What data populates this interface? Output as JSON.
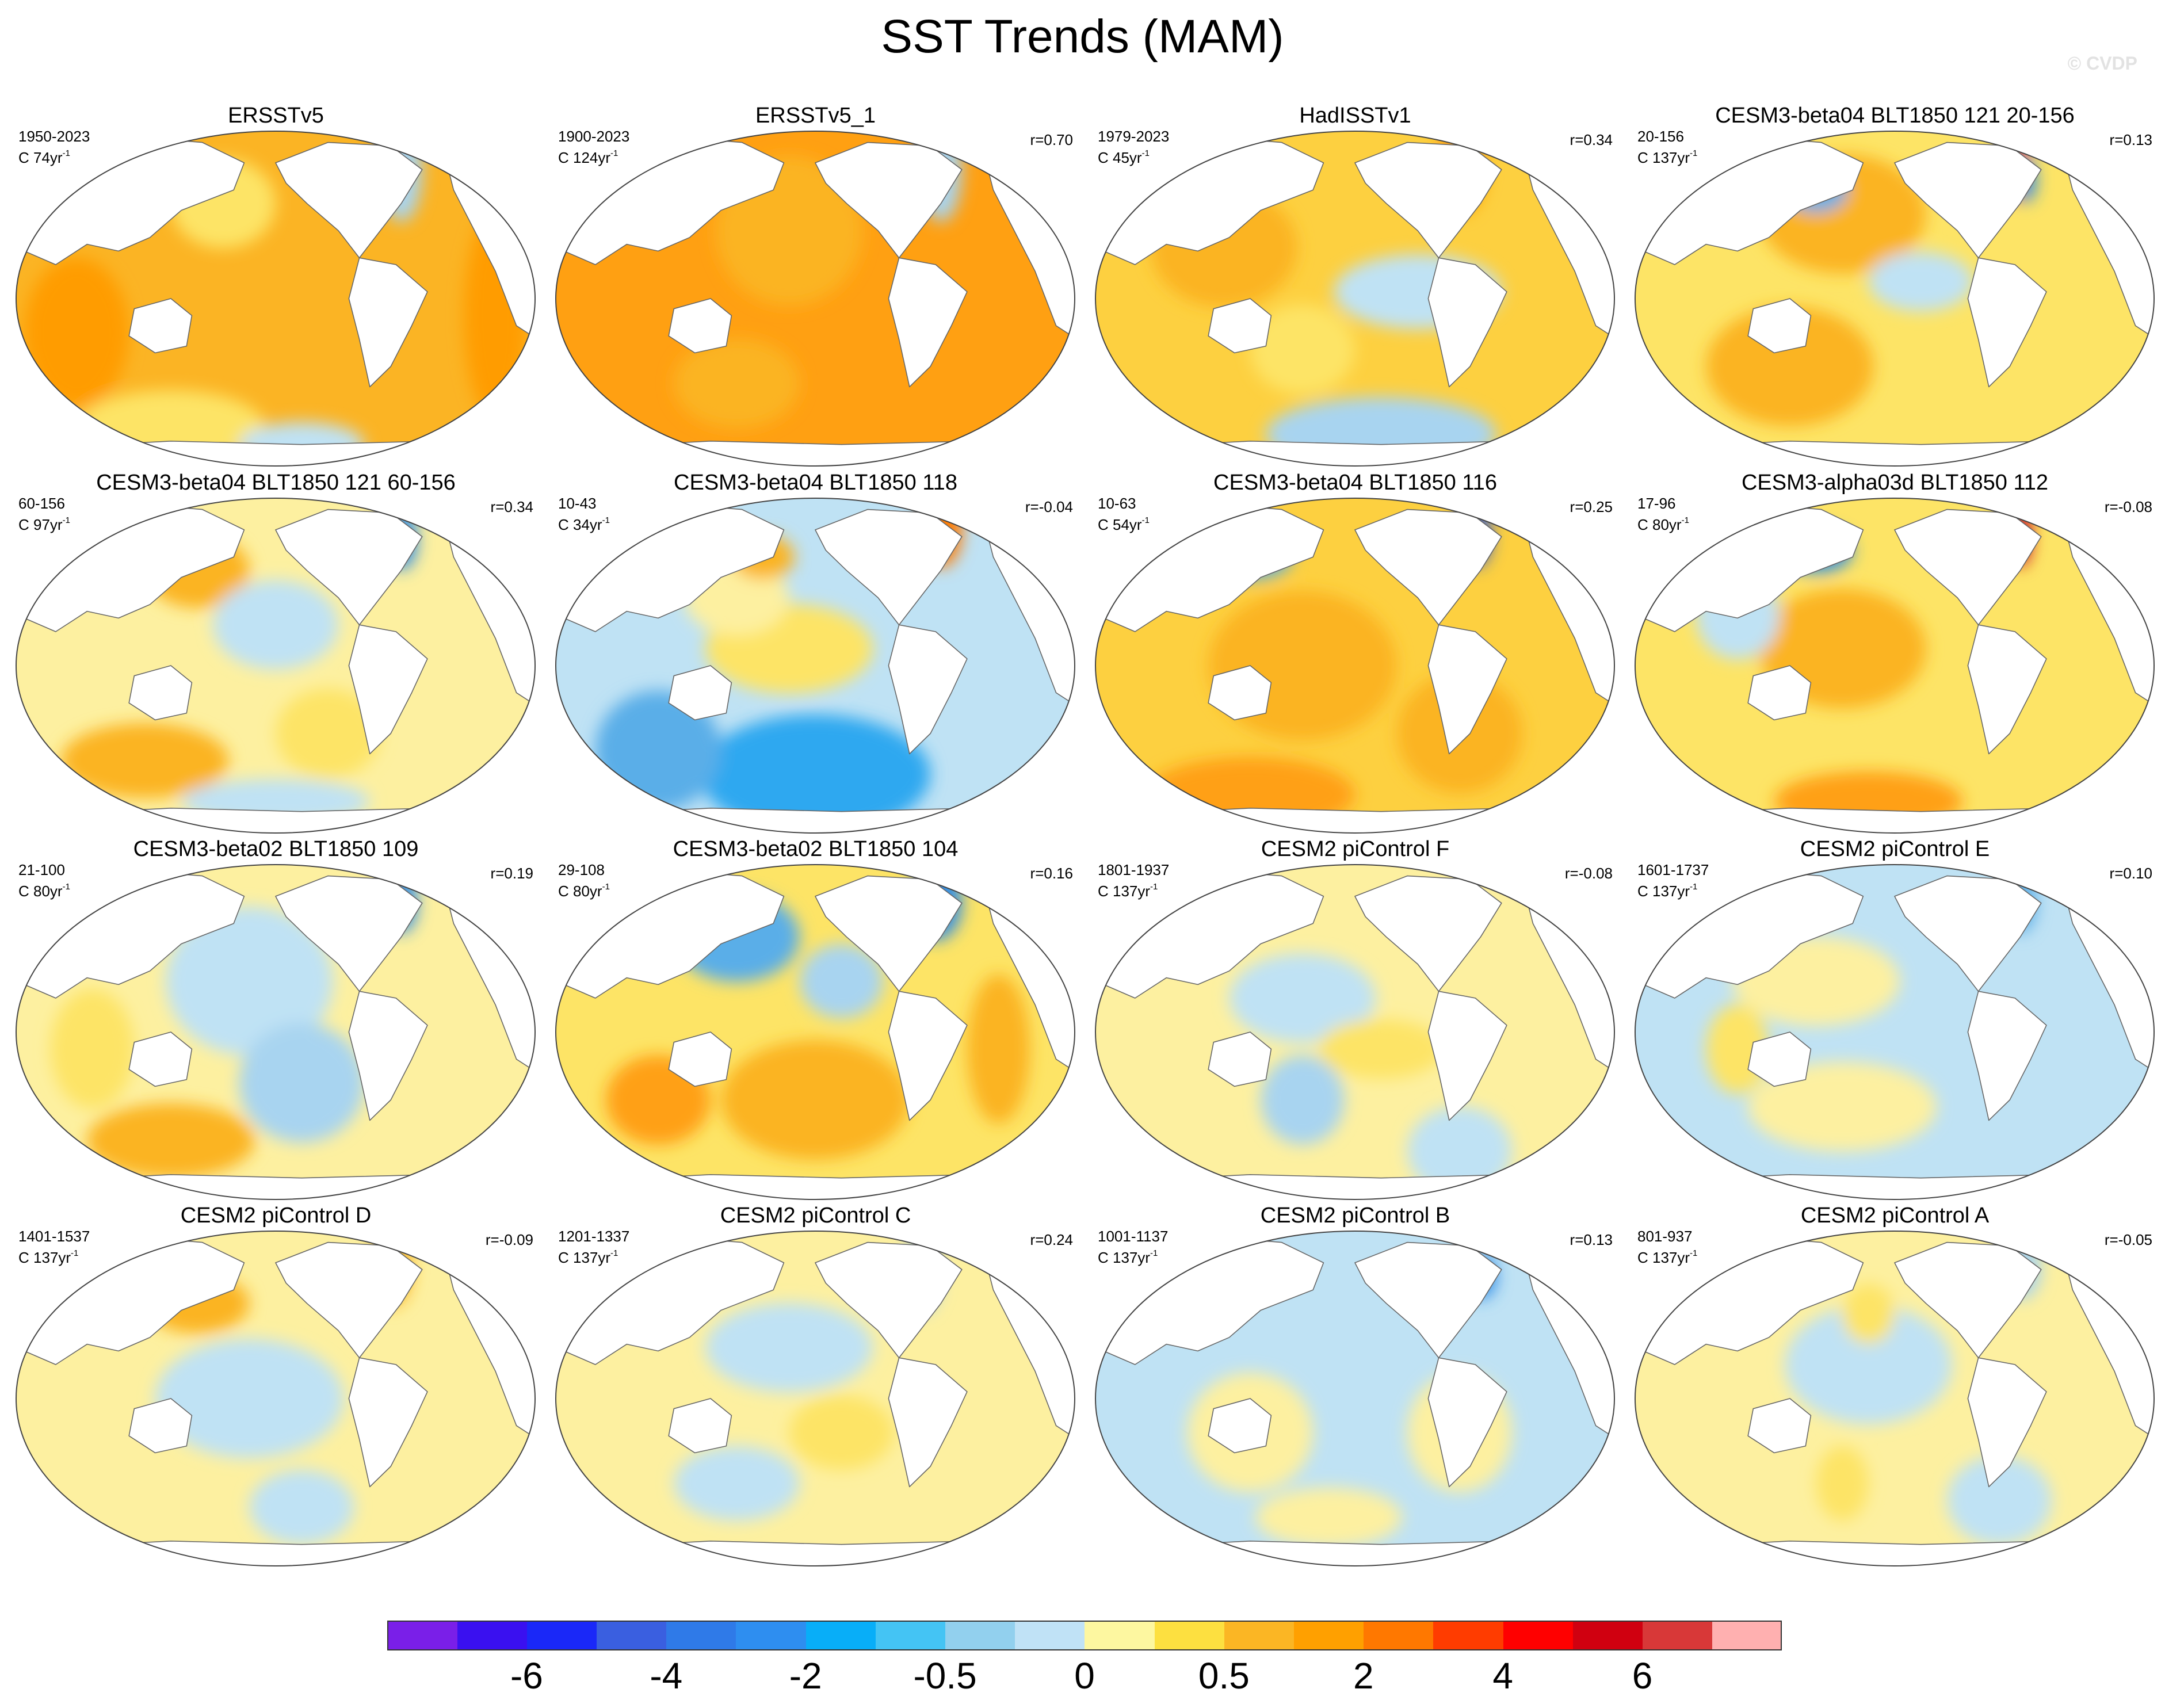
{
  "title": "SST Trends (MAM)",
  "watermark": "© CVDP",
  "panels": [
    {
      "title": "ERSSTv5",
      "years": "1950-2023",
      "constant": "C 74yr",
      "unit_sup": "-1",
      "corr": "",
      "base": "#fbb424",
      "blobs": [
        [
          "#fde466",
          0.4,
          0.22,
          0.1,
          0.06
        ],
        [
          "#a8d4f0",
          0.74,
          0.12,
          0.04,
          0.07
        ],
        [
          "#fde466",
          0.3,
          0.88,
          0.18,
          0.05
        ],
        [
          "#bfe2f4",
          0.55,
          0.93,
          0.12,
          0.03
        ],
        [
          "#ff9c00",
          0.12,
          0.6,
          0.1,
          0.1
        ],
        [
          "#ff9c00",
          0.92,
          0.55,
          0.06,
          0.14
        ]
      ]
    },
    {
      "title": "ERSSTv5_1",
      "years": "1900-2023",
      "constant": "C 124yr",
      "unit_sup": "-1",
      "corr": "r=0.70",
      "base": "#ffa012",
      "blobs": [
        [
          "#fbb424",
          0.45,
          0.3,
          0.14,
          0.1
        ],
        [
          "#a8d4f0",
          0.74,
          0.12,
          0.04,
          0.07
        ],
        [
          "#fbb424",
          0.35,
          0.75,
          0.12,
          0.06
        ]
      ]
    },
    {
      "title": "HadISSTv1",
      "years": "1979-2023",
      "constant": "C 45yr",
      "unit_sup": "-1",
      "corr": "r=0.34",
      "base": "#fdd040",
      "blobs": [
        [
          "#bfe2f4",
          0.62,
          0.48,
          0.16,
          0.05
        ],
        [
          "#a8d4f0",
          0.55,
          0.9,
          0.22,
          0.05
        ],
        [
          "#fbb424",
          0.25,
          0.35,
          0.14,
          0.08
        ],
        [
          "#ffa012",
          0.7,
          0.12,
          0.05,
          0.06
        ],
        [
          "#fde466",
          0.4,
          0.65,
          0.1,
          0.06
        ]
      ]
    },
    {
      "title": "CESM3-beta04 BLT1850 121 20-156",
      "years": "20-156",
      "constant": "C 137yr",
      "unit_sup": "-1",
      "corr": "r=0.13",
      "base": "#fde466",
      "blobs": [
        [
          "#fbb424",
          0.4,
          0.25,
          0.16,
          0.08
        ],
        [
          "#fbb424",
          0.3,
          0.7,
          0.16,
          0.08
        ],
        [
          "#e8402a",
          0.73,
          0.12,
          0.03,
          0.04
        ],
        [
          "#2e8de8",
          0.75,
          0.15,
          0.02,
          0.03
        ],
        [
          "#bfe2f4",
          0.55,
          0.45,
          0.1,
          0.04
        ],
        [
          "#5aaee8",
          0.35,
          0.18,
          0.06,
          0.03
        ]
      ]
    },
    {
      "title": "CESM3-beta04 BLT1850 121 60-156",
      "years": "60-156",
      "constant": "C 97yr",
      "unit_sup": "-1",
      "corr": "r=0.34",
      "base": "#fdf0a0",
      "blobs": [
        [
          "#fbb424",
          0.35,
          0.22,
          0.1,
          0.05
        ],
        [
          "#bfe2f4",
          0.5,
          0.38,
          0.12,
          0.06
        ],
        [
          "#fbb424",
          0.25,
          0.78,
          0.16,
          0.05
        ],
        [
          "#bfe2f4",
          0.5,
          0.9,
          0.18,
          0.03
        ],
        [
          "#2e8de8",
          0.74,
          0.13,
          0.03,
          0.04
        ],
        [
          "#fde466",
          0.6,
          0.7,
          0.1,
          0.06
        ]
      ]
    },
    {
      "title": "CESM3-beta04 BLT1850 118",
      "years": "10-43",
      "constant": "C 34yr",
      "unit_sup": "-1",
      "corr": "r=-0.04",
      "base": "#bfe2f4",
      "blobs": [
        [
          "#2ea8f0",
          0.5,
          0.82,
          0.22,
          0.08
        ],
        [
          "#5aaee8",
          0.2,
          0.75,
          0.12,
          0.08
        ],
        [
          "#fde466",
          0.45,
          0.45,
          0.16,
          0.06
        ],
        [
          "#ff7a00",
          0.74,
          0.1,
          0.04,
          0.05
        ],
        [
          "#fdf0a0",
          0.35,
          0.3,
          0.1,
          0.05
        ],
        [
          "#fbb424",
          0.4,
          0.18,
          0.06,
          0.03
        ]
      ]
    },
    {
      "title": "CESM3-beta04 BLT1850 116",
      "years": "10-63",
      "constant": "C 54yr",
      "unit_sup": "-1",
      "corr": "r=0.25",
      "base": "#fdd040",
      "blobs": [
        [
          "#fbb424",
          0.4,
          0.5,
          0.18,
          0.1
        ],
        [
          "#ffa012",
          0.3,
          0.88,
          0.2,
          0.05
        ],
        [
          "#2e58d8",
          0.73,
          0.12,
          0.03,
          0.04
        ],
        [
          "#5aaee8",
          0.3,
          0.18,
          0.08,
          0.03
        ],
        [
          "#fbb424",
          0.7,
          0.7,
          0.12,
          0.08
        ]
      ]
    },
    {
      "title": "CESM3-alpha03d BLT1850 112",
      "years": "17-96",
      "constant": "C 80yr",
      "unit_sup": "-1",
      "corr": "r=-0.08",
      "base": "#fde466",
      "blobs": [
        [
          "#fbb424",
          0.4,
          0.45,
          0.16,
          0.08
        ],
        [
          "#ffa012",
          0.45,
          0.9,
          0.18,
          0.04
        ],
        [
          "#c8001a",
          0.74,
          0.12,
          0.02,
          0.04
        ],
        [
          "#2e8de8",
          0.35,
          0.16,
          0.07,
          0.03
        ],
        [
          "#bfe2f4",
          0.2,
          0.35,
          0.08,
          0.06
        ]
      ]
    },
    {
      "title": "CESM3-beta02 BLT1850 109",
      "years": "21-100",
      "constant": "C 80yr",
      "unit_sup": "-1",
      "corr": "r=0.19",
      "base": "#fdf0a0",
      "blobs": [
        [
          "#bfe2f4",
          0.45,
          0.35,
          0.16,
          0.1
        ],
        [
          "#a8d4f0",
          0.55,
          0.65,
          0.12,
          0.08
        ],
        [
          "#fbb424",
          0.3,
          0.82,
          0.16,
          0.05
        ],
        [
          "#2e8de8",
          0.74,
          0.12,
          0.03,
          0.04
        ],
        [
          "#fde466",
          0.15,
          0.55,
          0.08,
          0.08
        ]
      ]
    },
    {
      "title": "CESM3-beta02 BLT1850 104",
      "years": "29-108",
      "constant": "C 80yr",
      "unit_sup": "-1",
      "corr": "r=0.16",
      "base": "#fde466",
      "blobs": [
        [
          "#5aaee8",
          0.35,
          0.22,
          0.12,
          0.06
        ],
        [
          "#fbb424",
          0.5,
          0.7,
          0.18,
          0.08
        ],
        [
          "#ffa012",
          0.2,
          0.7,
          0.1,
          0.06
        ],
        [
          "#2e8de8",
          0.73,
          0.12,
          0.05,
          0.05
        ],
        [
          "#a8d4f0",
          0.55,
          0.35,
          0.08,
          0.05
        ],
        [
          "#fbb424",
          0.85,
          0.55,
          0.06,
          0.1
        ]
      ]
    },
    {
      "title": "CESM2 piControl F",
      "years": "1801-1937",
      "constant": "C 137yr",
      "unit_sup": "-1",
      "corr": "r=-0.08",
      "base": "#fdf0a0",
      "blobs": [
        [
          "#bfe2f4",
          0.4,
          0.4,
          0.14,
          0.06
        ],
        [
          "#a8d4f0",
          0.4,
          0.7,
          0.08,
          0.06
        ],
        [
          "#fde466",
          0.55,
          0.55,
          0.12,
          0.04
        ],
        [
          "#bfe2f4",
          0.7,
          0.85,
          0.1,
          0.06
        ]
      ]
    },
    {
      "title": "CESM2 piControl E",
      "years": "1601-1737",
      "constant": "C 137yr",
      "unit_sup": "-1",
      "corr": "r=0.10",
      "base": "#bfe2f4",
      "blobs": [
        [
          "#fdf0a0",
          0.35,
          0.35,
          0.16,
          0.06
        ],
        [
          "#fdf0a0",
          0.4,
          0.72,
          0.18,
          0.06
        ],
        [
          "#5aaee8",
          0.74,
          0.12,
          0.03,
          0.04
        ],
        [
          "#fde466",
          0.2,
          0.55,
          0.06,
          0.06
        ]
      ]
    },
    {
      "title": "CESM2 piControl D",
      "years": "1401-1537",
      "constant": "C 137yr",
      "unit_sup": "-1",
      "corr": "r=-0.09",
      "base": "#fdf0a0",
      "blobs": [
        [
          "#bfe2f4",
          0.45,
          0.5,
          0.18,
          0.08
        ],
        [
          "#fbb424",
          0.35,
          0.22,
          0.1,
          0.04
        ],
        [
          "#fbb424",
          0.72,
          0.12,
          0.04,
          0.05
        ],
        [
          "#bfe2f4",
          0.55,
          0.82,
          0.1,
          0.05
        ]
      ]
    },
    {
      "title": "CESM2 piControl C",
      "years": "1201-1337",
      "constant": "C 137yr",
      "unit_sup": "-1",
      "corr": "r=0.24",
      "base": "#fdf0a0",
      "blobs": [
        [
          "#bfe2f4",
          0.45,
          0.35,
          0.16,
          0.06
        ],
        [
          "#a8d4f0",
          0.7,
          0.14,
          0.04,
          0.05
        ],
        [
          "#bfe2f4",
          0.35,
          0.75,
          0.12,
          0.05
        ],
        [
          "#fde466",
          0.55,
          0.6,
          0.1,
          0.05
        ]
      ]
    },
    {
      "title": "CESM2 piControl B",
      "years": "1001-1137",
      "constant": "C 137yr",
      "unit_sup": "-1",
      "corr": "r=0.13",
      "base": "#bfe2f4",
      "blobs": [
        [
          "#fdf0a0",
          0.3,
          0.6,
          0.12,
          0.08
        ],
        [
          "#fdf0a0",
          0.7,
          0.6,
          0.1,
          0.08
        ],
        [
          "#2e8de8",
          0.74,
          0.14,
          0.03,
          0.03
        ],
        [
          "#fdf0a0",
          0.45,
          0.85,
          0.14,
          0.04
        ]
      ]
    },
    {
      "title": "CESM2 piControl A",
      "years": "801-937",
      "constant": "C 137yr",
      "unit_sup": "-1",
      "corr": "r=-0.05",
      "base": "#fdf0a0",
      "blobs": [
        [
          "#bfe2f4",
          0.45,
          0.4,
          0.16,
          0.08
        ],
        [
          "#fde466",
          0.4,
          0.75,
          0.05,
          0.05
        ],
        [
          "#fde466",
          0.45,
          0.25,
          0.05,
          0.04
        ],
        [
          "#a8d4f0",
          0.74,
          0.12,
          0.04,
          0.04
        ],
        [
          "#bfe2f4",
          0.7,
          0.8,
          0.1,
          0.06
        ]
      ]
    }
  ],
  "colorbar": {
    "colors": [
      "#7a1fe8",
      "#3a10f0",
      "#1a28f8",
      "#3a5fe0",
      "#2f7ae8",
      "#2e8ef0",
      "#08aef8",
      "#44c4f4",
      "#92d0ee",
      "#c0e2f6",
      "#fdf7a0",
      "#fde040",
      "#fbb624",
      "#ffa000",
      "#ff7800",
      "#ff3c00",
      "#ff0000",
      "#d00010",
      "#d83838",
      "#ffb0b0"
    ],
    "labels": [
      "-6",
      "-4",
      "-2",
      "-0.5",
      "0",
      "0.5",
      "2",
      "4",
      "6"
    ],
    "label_boundary_index": [
      2,
      4,
      6,
      8,
      10,
      12,
      14,
      16,
      18
    ]
  }
}
